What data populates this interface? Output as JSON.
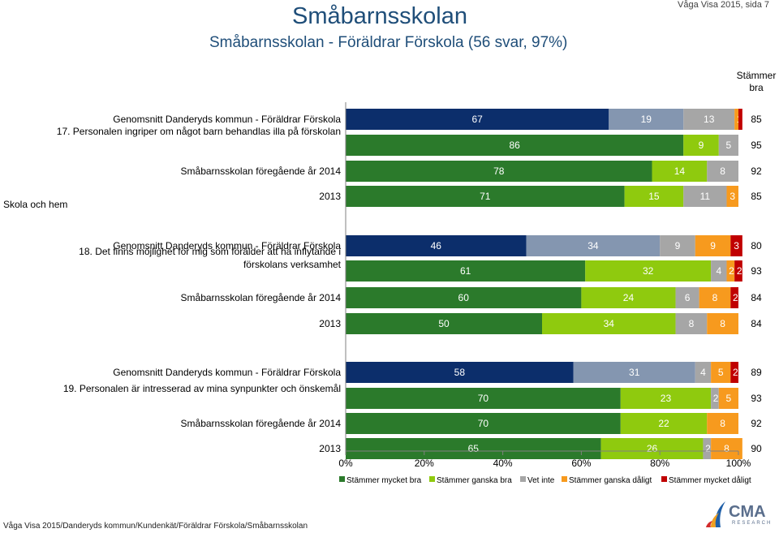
{
  "header": {
    "title": "Småbarnsskolan",
    "subtitle": "Småbarnsskolan - Föräldrar Förskola (56 svar, 97%)",
    "page_ref": "Våga Visa 2015, sida 7"
  },
  "footer": {
    "path": "Våga Visa 2015/Danderyds kommun/Kundenkät/Föräldrar Förskola/Småbarnsskolan"
  },
  "logo": {
    "name": "CMA",
    "sub": "RESEARCH"
  },
  "chart_data": {
    "type": "bar",
    "orientation": "horizontal",
    "stacked": true,
    "section_label": "Skola och hem",
    "summary_header": "Stämmer bra",
    "x_ticks": [
      "0%",
      "20%",
      "40%",
      "60%",
      "80%",
      "100%"
    ],
    "xlim": [
      0,
      100
    ],
    "legend": [
      "Stämmer mycket bra",
      "Stämmer ganska bra",
      "Vet inte",
      "Stämmer ganska dåligt",
      "Stämmer mycket dåligt"
    ],
    "colors": {
      "avg_mycket_bra": "#0c2e6b",
      "avg_ganska_bra": "#8496b0",
      "mycket_bra": "#2b7a2b",
      "ganska_bra": "#8fca0e",
      "vet_inte": "#a6a6a6",
      "ganska_daligt": "#f79a1e",
      "mycket_daligt": "#c00000"
    },
    "questions": [
      {
        "question": "17. Personalen ingriper om något barn behandlas illa på förskolan",
        "rows": [
          {
            "label": "Genomsnitt Danderyds kommun - Föräldrar Förskola",
            "kind": "avg",
            "values": [
              67,
              19,
              13,
              1,
              1
            ],
            "labels": [
              "67",
              "19",
              "13",
              "1",
              ""
            ],
            "summary": "85"
          },
          {
            "label": "",
            "kind": "school",
            "values": [
              86,
              9,
              5,
              0,
              0
            ],
            "labels": [
              "86",
              "9",
              "5",
              "0",
              ""
            ],
            "summary": "95"
          },
          {
            "label": "Småbarnsskolan föregående år 2014",
            "kind": "school",
            "values": [
              78,
              14,
              8,
              0,
              0
            ],
            "labels": [
              "78",
              "14",
              "8",
              "0",
              ""
            ],
            "summary": "92"
          },
          {
            "label": "2013",
            "kind": "school",
            "values": [
              71,
              15,
              11,
              3,
              0
            ],
            "labels": [
              "71",
              "15",
              "11",
              "3",
              "0"
            ],
            "summary": "85"
          }
        ]
      },
      {
        "question": "18. Det finns möjlighet för mig som förälder att ha inflytande i förskolans verksamhet",
        "rows": [
          {
            "label": "Genomsnitt Danderyds kommun - Föräldrar Förskola",
            "kind": "avg",
            "values": [
              46,
              34,
              9,
              9,
              3
            ],
            "labels": [
              "46",
              "34",
              "9",
              "9",
              "3"
            ],
            "summary": "80"
          },
          {
            "label": "",
            "kind": "school",
            "values": [
              61,
              32,
              4,
              2,
              2
            ],
            "labels": [
              "61",
              "32",
              "4",
              "2",
              "2"
            ],
            "summary": "93"
          },
          {
            "label": "Småbarnsskolan föregående år 2014",
            "kind": "school",
            "values": [
              60,
              24,
              6,
              8,
              2
            ],
            "labels": [
              "60",
              "24",
              "6",
              "8",
              "2"
            ],
            "summary": "84"
          },
          {
            "label": "2013",
            "kind": "school",
            "values": [
              50,
              34,
              8,
              8,
              0
            ],
            "labels": [
              "50",
              "34",
              "8",
              "8",
              "0"
            ],
            "summary": "84"
          }
        ]
      },
      {
        "question": "19. Personalen är intresserad av mina synpunkter och önskemål",
        "rows": [
          {
            "label": "Genomsnitt Danderyds kommun - Föräldrar Förskola",
            "kind": "avg",
            "values": [
              58,
              31,
              4,
              5,
              2
            ],
            "labels": [
              "58",
              "31",
              "4",
              "5",
              "2"
            ],
            "summary": "89"
          },
          {
            "label": "",
            "kind": "school",
            "values": [
              70,
              23,
              2,
              5,
              0
            ],
            "labels": [
              "70",
              "23",
              "2",
              "5",
              "0"
            ],
            "summary": "93"
          },
          {
            "label": "Småbarnsskolan föregående år 2014",
            "kind": "school",
            "values": [
              70,
              22,
              0,
              8,
              0
            ],
            "labels": [
              "70",
              "22",
              "0",
              "8",
              "0"
            ],
            "summary": "92"
          },
          {
            "label": "2013",
            "kind": "school",
            "values": [
              65,
              26,
              2,
              8,
              0
            ],
            "labels": [
              "65",
              "26",
              "2",
              "8",
              "0"
            ],
            "summary": "90"
          }
        ]
      }
    ]
  }
}
